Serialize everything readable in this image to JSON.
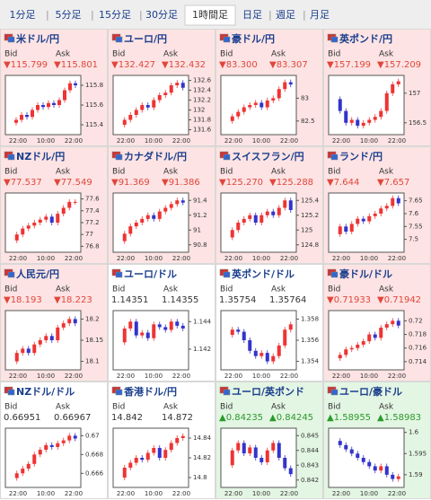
{
  "tabs": [
    "1分足",
    "5分足",
    "15分足",
    "30分足",
    "1時間足",
    "日足",
    "週足",
    "月足"
  ],
  "selected_tab": 4,
  "panels": [
    {
      "title": "米ドル/円",
      "bid_label": "Bid",
      "ask_label": "Ask",
      "bid": "▼115.799",
      "ask": "▼115.801",
      "tone": "down",
      "chart": {
        "type": "candlestick",
        "xlabels": [
          "22:00",
          "10:00",
          "22:00"
        ],
        "ylim": [
          115.3,
          115.9
        ],
        "yticks": [
          115.8,
          115.6,
          115.4
        ],
        "values": [
          115.42,
          115.45,
          115.5,
          115.48,
          115.55,
          115.6,
          115.58,
          115.62,
          115.6,
          115.65,
          115.75,
          115.82,
          115.8
        ]
      }
    },
    {
      "title": "ユーロ/円",
      "bid_label": "Bid",
      "ask_label": "Ask",
      "bid": "▼132.427",
      "ask": "▼132.432",
      "tone": "down",
      "chart": {
        "type": "candlestick",
        "xlabels": [
          "22:00",
          "10:00",
          "22:00"
        ],
        "ylim": [
          131.5,
          132.7
        ],
        "yticks": [
          132.6,
          132.4,
          132.2,
          132,
          131.8,
          131.6
        ],
        "values": [
          131.7,
          131.8,
          131.9,
          132.0,
          132.1,
          132.05,
          132.2,
          132.3,
          132.35,
          132.5,
          132.55,
          132.45
        ]
      }
    },
    {
      "title": "豪ドル/円",
      "bid_label": "Bid",
      "ask_label": "Ask",
      "bid": "▼83.300",
      "ask": "▼83.307",
      "tone": "down",
      "chart": {
        "type": "candlestick",
        "xlabels": [
          "22:00",
          "10:00",
          "22:00"
        ],
        "ylim": [
          82.2,
          83.5
        ],
        "yticks": [
          83,
          82.5
        ],
        "values": [
          82.5,
          82.6,
          82.7,
          82.8,
          82.85,
          82.9,
          82.8,
          82.95,
          83.0,
          83.2,
          83.35,
          83.3
        ]
      }
    },
    {
      "title": "英ポンド/円",
      "bid_label": "Bid",
      "ask_label": "Ask",
      "bid": "▼157.199",
      "ask": "▼157.209",
      "tone": "down",
      "chart": {
        "type": "candlestick",
        "xlabels": [
          "22:00",
          "10:00",
          "22:00"
        ],
        "ylim": [
          156.3,
          157.3
        ],
        "yticks": [
          157,
          156.5
        ],
        "values": [
          156.9,
          156.7,
          156.5,
          156.55,
          156.45,
          156.5,
          156.55,
          156.6,
          156.7,
          157.0,
          157.15,
          157.2
        ]
      }
    },
    {
      "title": "NZドル/円",
      "bid_label": "Bid",
      "ask_label": "Ask",
      "bid": "▼77.537",
      "ask": "▼77.549",
      "tone": "down",
      "chart": {
        "type": "candlestick",
        "xlabels": [
          "22:00",
          "10:00",
          "22:00"
        ],
        "ylim": [
          76.7,
          77.7
        ],
        "yticks": [
          77.6,
          77.4,
          77.2,
          77,
          76.8
        ],
        "values": [
          76.9,
          77.0,
          77.1,
          77.15,
          77.2,
          77.25,
          77.3,
          77.2,
          77.35,
          77.45,
          77.55,
          77.55
        ]
      }
    },
    {
      "title": "カナダドル/円",
      "bid_label": "Bid",
      "ask_label": "Ask",
      "bid": "▼91.369",
      "ask": "▼91.386",
      "tone": "down",
      "chart": {
        "type": "candlestick",
        "xlabels": [
          "22:00",
          "10:00",
          "22:00"
        ],
        "ylim": [
          90.7,
          91.5
        ],
        "yticks": [
          91.4,
          91.2,
          91,
          90.8
        ],
        "values": [
          90.85,
          90.95,
          91.05,
          91.1,
          91.15,
          91.2,
          91.15,
          91.25,
          91.3,
          91.35,
          91.4,
          91.37
        ]
      }
    },
    {
      "title": "スイスフラン/円",
      "bid_label": "Bid",
      "ask_label": "Ask",
      "bid": "▼125.270",
      "ask": "▼125.288",
      "tone": "down",
      "chart": {
        "type": "candlestick",
        "xlabels": [
          "22:00",
          "10:00",
          "22:00"
        ],
        "ylim": [
          124.7,
          125.5
        ],
        "yticks": [
          125.4,
          125.2,
          125,
          124.8
        ],
        "values": [
          124.9,
          125.0,
          125.1,
          125.15,
          125.2,
          125.1,
          125.2,
          125.25,
          125.2,
          125.3,
          125.4,
          125.27
        ]
      }
    },
    {
      "title": "ランド/円",
      "bid_label": "Bid",
      "ask_label": "Ask",
      "bid": "▼7.644",
      "ask": "▼7.657",
      "tone": "down",
      "chart": {
        "type": "candlestick",
        "xlabels": [
          "22:00",
          "10:00",
          "22:00"
        ],
        "ylim": [
          7.45,
          7.68
        ],
        "yticks": [
          7.65,
          7.6,
          7.55,
          7.5
        ],
        "values": [
          7.52,
          7.55,
          7.53,
          7.56,
          7.58,
          7.57,
          7.59,
          7.6,
          7.62,
          7.63,
          7.66,
          7.64
        ]
      }
    },
    {
      "title": "人民元/円",
      "bid_label": "Bid",
      "ask_label": "Ask",
      "bid": "▼18.193",
      "ask": "▼18.223",
      "tone": "down",
      "chart": {
        "type": "candlestick",
        "xlabels": [
          "22:00",
          "10:00",
          "22:00"
        ],
        "ylim": [
          18.08,
          18.22
        ],
        "yticks": [
          18.2,
          18.15,
          18.1
        ],
        "values": [
          18.1,
          18.12,
          18.13,
          18.12,
          18.14,
          18.15,
          18.16,
          18.15,
          18.18,
          18.19,
          18.2,
          18.19
        ]
      }
    },
    {
      "title": "ユーロ/ドル",
      "bid_label": "Bid",
      "ask_label": "Ask",
      "bid": "1.14351",
      "ask": "1.14355",
      "tone": "flat",
      "chart": {
        "type": "candlestick",
        "xlabels": [
          "22:00",
          "10:00",
          "22:00"
        ],
        "ylim": [
          1.1405,
          1.1448
        ],
        "yticks": [
          1.144,
          1.142
        ],
        "values": [
          1.1425,
          1.1435,
          1.144,
          1.143,
          1.1432,
          1.1428,
          1.1438,
          1.1436,
          1.1434,
          1.144,
          1.1437,
          1.1435
        ]
      }
    },
    {
      "title": "英ポンド/ドル",
      "bid_label": "Bid",
      "ask_label": "Ask",
      "bid": "1.35754",
      "ask": "1.35764",
      "tone": "flat",
      "chart": {
        "type": "candlestick",
        "xlabels": [
          "22:00",
          "10:00",
          "22:00"
        ],
        "ylim": [
          1.3532,
          1.3588
        ],
        "yticks": [
          1.358,
          1.356,
          1.354
        ],
        "values": [
          1.3565,
          1.357,
          1.3568,
          1.356,
          1.355,
          1.3545,
          1.3548,
          1.354,
          1.3545,
          1.3555,
          1.357,
          1.3575
        ]
      }
    },
    {
      "title": "豪ドル/ドル",
      "bid_label": "Bid",
      "ask_label": "Ask",
      "bid": "▼0.71933",
      "ask": "▼0.71942",
      "tone": "down",
      "chart": {
        "type": "candlestick",
        "xlabels": [
          "22:00",
          "10:00",
          "22:00"
        ],
        "ylim": [
          0.7128,
          0.7215
        ],
        "yticks": [
          0.72,
          0.718,
          0.716,
          0.714
        ],
        "values": [
          0.7145,
          0.715,
          0.7158,
          0.716,
          0.7165,
          0.717,
          0.718,
          0.7175,
          0.719,
          0.7195,
          0.72,
          0.7193
        ]
      }
    },
    {
      "title": "NZドル/ドル",
      "bid_label": "Bid",
      "ask_label": "Ask",
      "bid": "0.66951",
      "ask": "0.66967",
      "tone": "flat",
      "chart": {
        "type": "candlestick",
        "xlabels": [
          "22:00",
          "10:00",
          "22:00"
        ],
        "ylim": [
          0.6645,
          0.6708
        ],
        "yticks": [
          0.67,
          0.668,
          0.666
        ],
        "values": [
          0.6655,
          0.666,
          0.6665,
          0.667,
          0.668,
          0.6685,
          0.669,
          0.6688,
          0.6692,
          0.6695,
          0.67,
          0.6697
        ]
      }
    },
    {
      "title": "香港ドル/円",
      "bid_label": "Bid",
      "ask_label": "Ask",
      "bid": "14.842",
      "ask": "14.872",
      "tone": "flat",
      "chart": {
        "type": "candlestick",
        "xlabels": [
          "22:00",
          "10:00",
          "22:00"
        ],
        "ylim": [
          14.79,
          14.85
        ],
        "yticks": [
          14.84,
          14.82,
          14.8
        ],
        "values": [
          14.8,
          14.81,
          14.815,
          14.82,
          14.818,
          14.825,
          14.83,
          14.82,
          14.828,
          14.835,
          14.84,
          14.842
        ]
      }
    },
    {
      "title": "ユーロ/英ポンド",
      "bid_label": "Bid",
      "ask_label": "Ask",
      "bid": "▲0.84235",
      "ask": "▲0.84245",
      "tone": "up",
      "chart": {
        "type": "candlestick",
        "xlabels": [
          "22:00",
          "10:00",
          "22:00"
        ],
        "ylim": [
          0.8415,
          0.8455
        ],
        "yticks": [
          0.845,
          0.844,
          0.843,
          0.842
        ],
        "values": [
          0.843,
          0.844,
          0.8445,
          0.8438,
          0.8442,
          0.8435,
          0.8432,
          0.844,
          0.8445,
          0.8435,
          0.8428,
          0.8424
        ]
      }
    },
    {
      "title": "ユーロ/豪ドル",
      "bid_label": "Bid",
      "ask_label": "Ask",
      "bid": "▲1.58955",
      "ask": "▲1.58983",
      "tone": "up",
      "chart": {
        "type": "candlestick",
        "xlabels": [
          "22:00",
          "10:00",
          "22:00"
        ],
        "ylim": [
          1.587,
          1.601
        ],
        "yticks": [
          1.6,
          1.595,
          1.59
        ],
        "values": [
          1.598,
          1.597,
          1.596,
          1.595,
          1.594,
          1.593,
          1.592,
          1.591,
          1.592,
          1.59,
          1.589,
          1.5896
        ]
      }
    }
  ]
}
